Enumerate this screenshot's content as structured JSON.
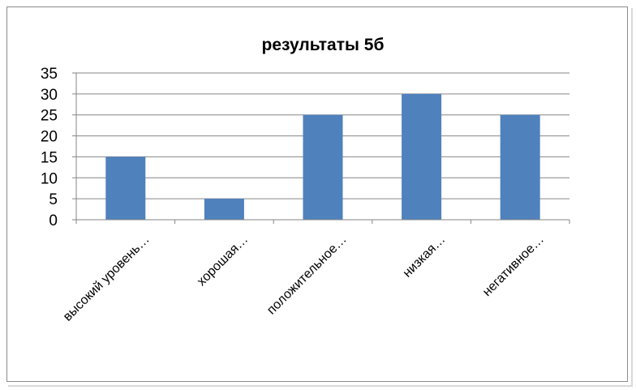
{
  "chart_data": {
    "type": "bar",
    "title": "результаты 5б",
    "categories": [
      "высокий уровень…",
      "хорошая…",
      "положительное…",
      "низкая…",
      "негативное…"
    ],
    "values": [
      15,
      5,
      25,
      30,
      25
    ],
    "xlabel": "",
    "ylabel": "",
    "ylim": [
      0,
      35
    ],
    "yticks": [
      0,
      5,
      10,
      15,
      20,
      25,
      30,
      35
    ],
    "grid": true,
    "legend": "none",
    "bar_color": "#4f81bd"
  }
}
